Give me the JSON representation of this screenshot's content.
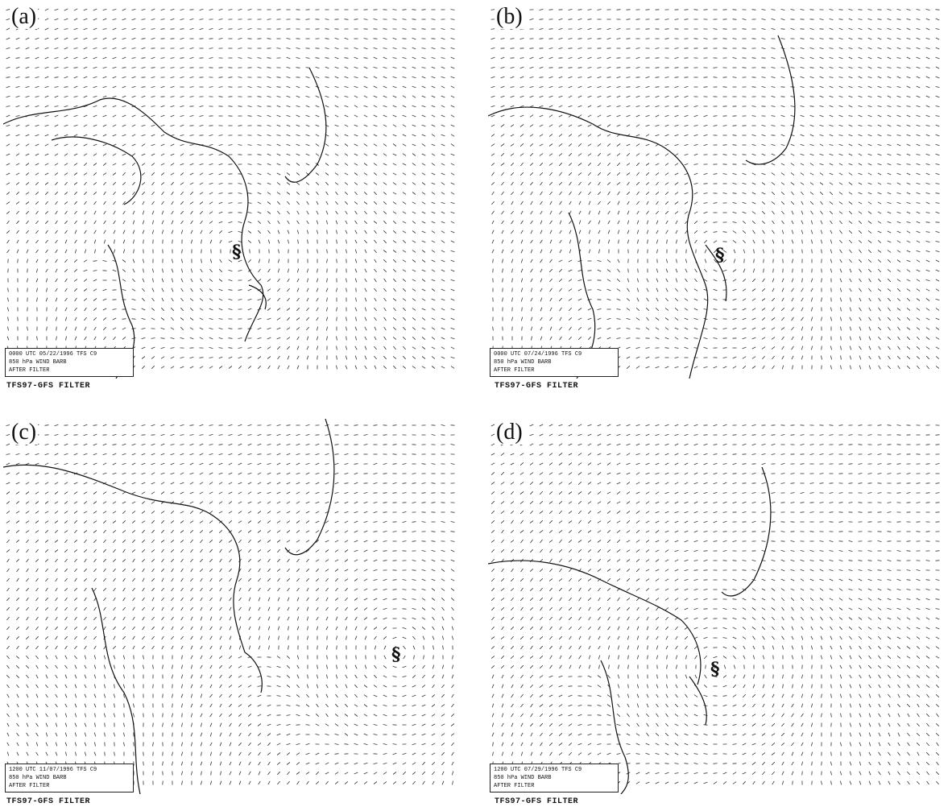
{
  "panels": [
    {
      "label": "(a)",
      "info_line1": "0000 UTC 05/22/1996",
      "info_line1b": "TFS C9",
      "info_line2": "850 hPa WIND BARB",
      "info_line3": "AFTER FILTER",
      "caption": "TFS97-GFS  FILTER",
      "storm_symbol": "§"
    },
    {
      "label": "(b)",
      "info_line1": "0000 UTC 07/24/1996",
      "info_line1b": "TFS C9",
      "info_line2": "850 hPa WIND BARB",
      "info_line3": "AFTER FILTER",
      "caption": "TFS97-GFS  FILTER",
      "storm_symbol": "§"
    },
    {
      "label": "(c)",
      "info_line1": "1200 UTC 11/07/1996",
      "info_line1b": "TFS C9",
      "info_line2": "850 hPa WIND BARB",
      "info_line3": "AFTER FILTER",
      "caption": "TFS97-GFS  FILTER",
      "storm_symbol": "§"
    },
    {
      "label": "(d)",
      "info_line1": "1200 UTC 07/29/1996",
      "info_line1b": "TFS C9",
      "info_line2": "850 hPa WIND BARB",
      "info_line3": "AFTER FILTER",
      "caption": "TFS97-GFS  FILTER",
      "storm_symbol": "§"
    }
  ],
  "colors": {
    "ink": "#222222",
    "background": "#ffffff"
  }
}
